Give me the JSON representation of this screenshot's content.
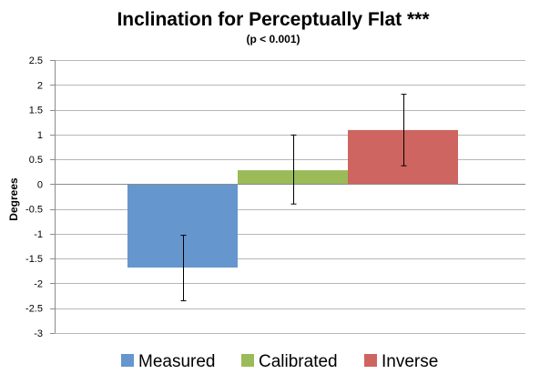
{
  "chart_data": {
    "type": "bar",
    "title": "Inclination for Perceptually Flat ***",
    "subtitle": "(p < 0.001)",
    "xlabel": "",
    "ylabel": "Degrees",
    "ylim": [
      -3,
      2.5
    ],
    "yticks": [
      2.5,
      2,
      1.5,
      1,
      0.5,
      0,
      -0.5,
      -1,
      -1.5,
      -2,
      -2.5,
      -3
    ],
    "ytick_labels": [
      "2.5",
      "2",
      "1.5",
      "1",
      "0.5",
      "0",
      "-0.5",
      "-1",
      "-1.5",
      "-2",
      "-2.5",
      "-3"
    ],
    "grid": true,
    "legend_position": "bottom",
    "series": [
      {
        "name": "Measured",
        "value": -1.68,
        "error_low": -2.35,
        "error_high": -1.03,
        "color": "#6596cd"
      },
      {
        "name": "Calibrated",
        "value": 0.28,
        "error_low": -0.4,
        "error_high": 0.99,
        "color": "#9bbb59"
      },
      {
        "name": "Inverse",
        "value": 1.09,
        "error_low": 0.37,
        "error_high": 1.81,
        "color": "#cf6560"
      }
    ]
  }
}
